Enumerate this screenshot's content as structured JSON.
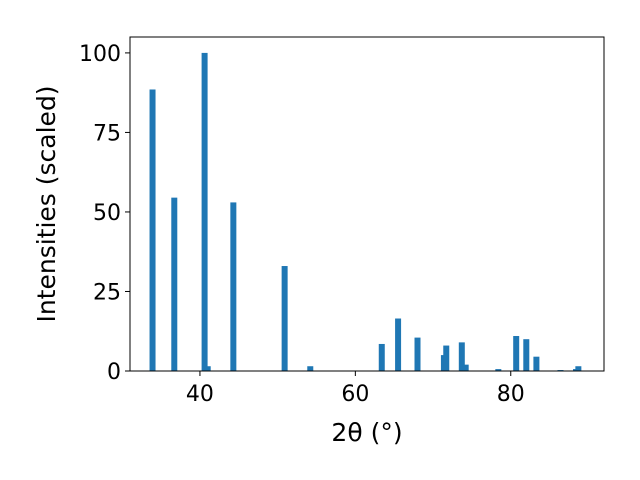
{
  "chart_data": {
    "type": "bar",
    "title": "",
    "xlabel": "2θ (°)",
    "ylabel": "Intensities (scaled)",
    "xlim": [
      31,
      92
    ],
    "ylim": [
      0,
      105
    ],
    "xticks": [
      40,
      60,
      80
    ],
    "yticks": [
      0,
      25,
      50,
      75,
      100
    ],
    "xtick_labels": [
      "40",
      "60",
      "80"
    ],
    "ytick_labels": [
      "0",
      "25",
      "50",
      "75",
      "100"
    ],
    "bar_color": "#1f77b4",
    "grid": false,
    "legend": "none",
    "x": [
      33.9,
      36.7,
      40.6,
      41.0,
      44.3,
      50.9,
      54.2,
      63.4,
      65.5,
      68.0,
      71.4,
      71.7,
      73.7,
      74.2,
      78.4,
      80.7,
      82.0,
      83.3,
      86.4,
      88.4,
      88.7
    ],
    "values": [
      88.5,
      54.5,
      100,
      1.5,
      53,
      33,
      1.5,
      8.5,
      16.5,
      10.5,
      5,
      8,
      9,
      2,
      0.6,
      11,
      10,
      4.5,
      0.3,
      0.6,
      1.5
    ]
  }
}
